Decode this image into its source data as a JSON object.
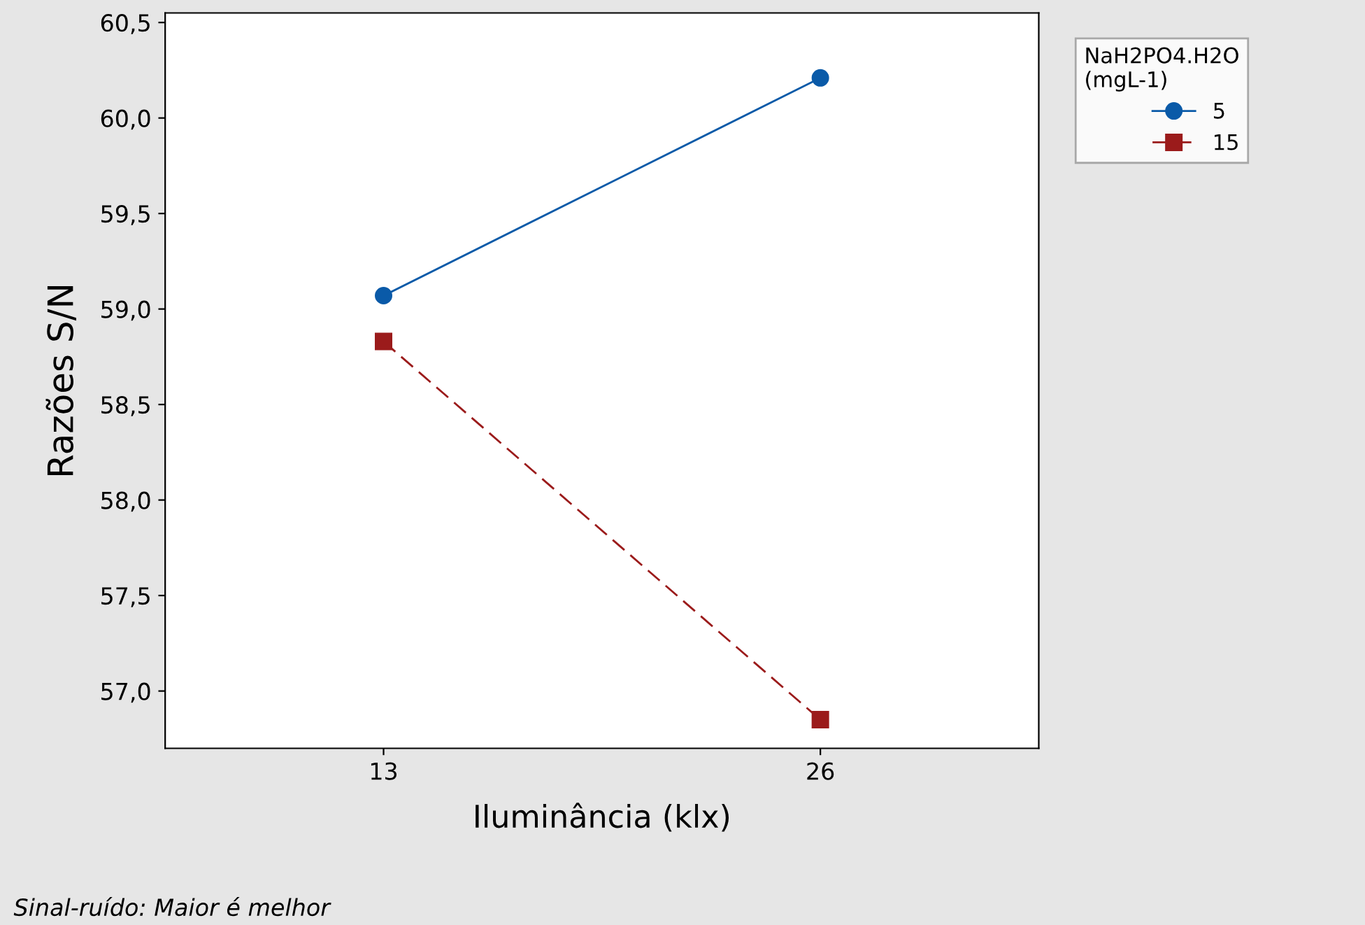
{
  "chart_data": {
    "type": "line",
    "xlabel": "Iluminância (klx)",
    "ylabel": "Razões S/N",
    "legend_title": "NaH2PO4.H2O\n(mgL-1)",
    "categories": [
      "13",
      "26"
    ],
    "series": [
      {
        "name": "5",
        "color": "#0a5aa8",
        "values": [
          59.07,
          60.21
        ],
        "marker": "circle",
        "line_style": "solid"
      },
      {
        "name": "15",
        "color": "#9b1b1b",
        "values": [
          58.83,
          56.85
        ],
        "marker": "square",
        "line_style": "dashed"
      }
    ],
    "ylim": [
      56.7,
      60.55
    ],
    "yticks": [
      {
        "value": 57.0,
        "label": "57,0"
      },
      {
        "value": 57.5,
        "label": "57,5"
      },
      {
        "value": 58.0,
        "label": "58,0"
      },
      {
        "value": 58.5,
        "label": "58,5"
      },
      {
        "value": 59.0,
        "label": "59,0"
      },
      {
        "value": 59.5,
        "label": "59,5"
      },
      {
        "value": 60.0,
        "label": "60,0"
      },
      {
        "value": 60.5,
        "label": "60,5"
      }
    ],
    "grid": false,
    "legend": "top right",
    "annotations": [
      "Sinal-ruído: Maior é melhor"
    ]
  }
}
